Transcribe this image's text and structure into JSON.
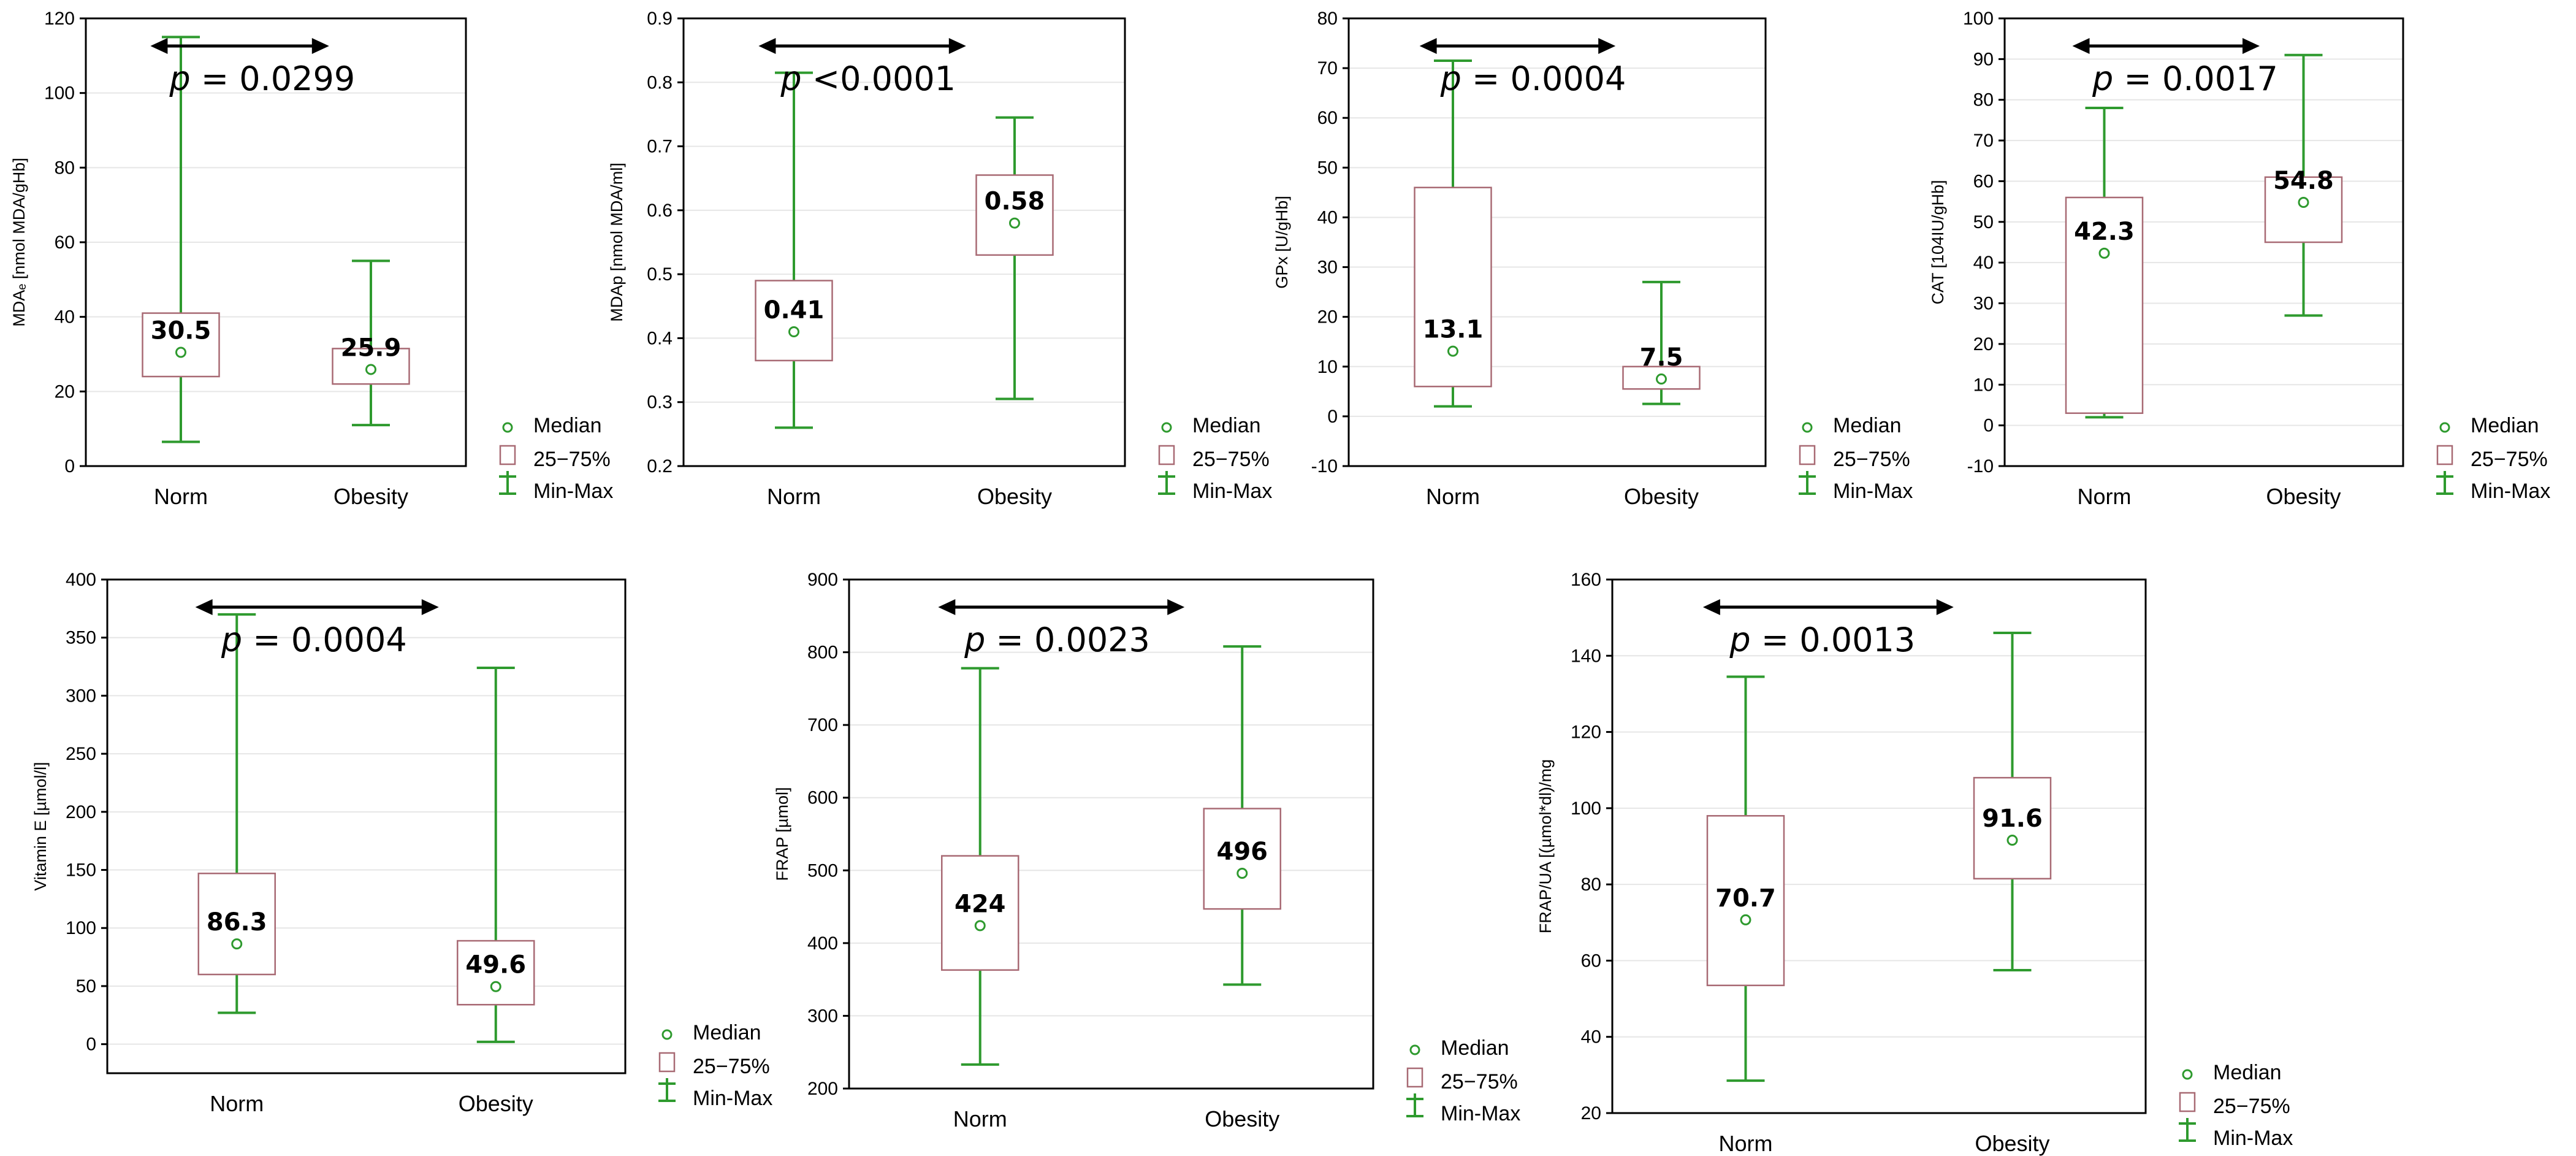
{
  "legend": {
    "median": "Median",
    "iqr": "25−75%",
    "range": "Min-Max"
  },
  "colors": {
    "whisker": "#2e9a2e",
    "box": "#a86a74",
    "median": "#2e9a2e"
  },
  "chart_data": [
    {
      "type": "box",
      "ylabel": "MDAₑ [nmol MDA/gHb]",
      "ylim": [
        0,
        120
      ],
      "yticks": [
        0,
        20,
        40,
        60,
        80,
        100,
        120
      ],
      "grid": true,
      "categories": [
        "Norm",
        "Obesity"
      ],
      "series": [
        {
          "category": "Norm",
          "median": 30.5,
          "q1": 24,
          "q3": 41,
          "min": 6.5,
          "max": 115,
          "label": "30.5"
        },
        {
          "category": "Obesity",
          "median": 25.9,
          "q1": 22,
          "q3": 31.5,
          "min": 11,
          "max": 55,
          "label": "25.9"
        }
      ],
      "p_value": "= 0.0299"
    },
    {
      "type": "box",
      "ylabel": "MDAp [nmol MDA/ml]",
      "ylim": [
        0.2,
        0.9
      ],
      "yticks": [
        0.2,
        0.3,
        0.4,
        0.5,
        0.6,
        0.7,
        0.8,
        0.9
      ],
      "grid": true,
      "categories": [
        "Norm",
        "Obesity"
      ],
      "series": [
        {
          "category": "Norm",
          "median": 0.41,
          "q1": 0.365,
          "q3": 0.49,
          "min": 0.26,
          "max": 0.815,
          "label": "0.41"
        },
        {
          "category": "Obesity",
          "median": 0.58,
          "q1": 0.53,
          "q3": 0.655,
          "min": 0.305,
          "max": 0.745,
          "label": "0.58"
        }
      ],
      "p_value": "<0.0001"
    },
    {
      "type": "box",
      "ylabel": "GPx [U/gHb]",
      "ylim": [
        -10,
        80
      ],
      "yticks": [
        -10,
        0,
        10,
        20,
        30,
        40,
        50,
        60,
        70,
        80
      ],
      "grid": true,
      "categories": [
        "Norm",
        "Obesity"
      ],
      "series": [
        {
          "category": "Norm",
          "median": 13.1,
          "q1": 6,
          "q3": 46,
          "min": 2,
          "max": 71.5,
          "label": "13.1"
        },
        {
          "category": "Obesity",
          "median": 7.5,
          "q1": 5.5,
          "q3": 10,
          "min": 2.5,
          "max": 27,
          "label": "7.5"
        }
      ],
      "p_value": "= 0.0004"
    },
    {
      "type": "box",
      "ylabel": "CAT [104IU/gHb]",
      "ylim": [
        -10,
        100
      ],
      "yticks": [
        -10,
        0,
        10,
        20,
        30,
        40,
        50,
        60,
        70,
        80,
        90,
        100
      ],
      "grid": true,
      "categories": [
        "Norm",
        "Obesity"
      ],
      "series": [
        {
          "category": "Norm",
          "median": 42.3,
          "q1": 3,
          "q3": 56,
          "min": 2,
          "max": 78,
          "label": "42.3"
        },
        {
          "category": "Obesity",
          "median": 54.8,
          "q1": 45,
          "q3": 61,
          "min": 27,
          "max": 91,
          "label": "54.8"
        }
      ],
      "p_value": "= 0.0017"
    },
    {
      "type": "box",
      "ylabel": "Vitamin E [µmol/l]",
      "ylim": [
        -25,
        400
      ],
      "yticks": [
        0,
        50,
        100,
        150,
        200,
        250,
        300,
        350,
        400
      ],
      "grid": true,
      "categories": [
        "Norm",
        "Obesity"
      ],
      "series": [
        {
          "category": "Norm",
          "median": 86.3,
          "q1": 60,
          "q3": 147,
          "min": 27,
          "max": 370,
          "label": "86.3"
        },
        {
          "category": "Obesity",
          "median": 49.6,
          "q1": 34,
          "q3": 89,
          "min": 2,
          "max": 324,
          "label": "49.6"
        }
      ],
      "p_value": "= 0.0004"
    },
    {
      "type": "box",
      "ylabel": "FRAP [µmol]",
      "ylim": [
        200,
        900
      ],
      "yticks": [
        200,
        300,
        400,
        500,
        600,
        700,
        800,
        900
      ],
      "grid": true,
      "categories": [
        "Norm",
        "Obesity"
      ],
      "series": [
        {
          "category": "Norm",
          "median": 424,
          "q1": 363,
          "q3": 520,
          "min": 233,
          "max": 778,
          "label": "424"
        },
        {
          "category": "Obesity",
          "median": 496,
          "q1": 447,
          "q3": 585,
          "min": 343,
          "max": 808,
          "label": "496"
        }
      ],
      "p_value": "= 0.0023"
    },
    {
      "type": "box",
      "ylabel": "FRAP/UA [(µmol*dl)/mg",
      "ylim": [
        20,
        160
      ],
      "yticks": [
        20,
        40,
        60,
        80,
        100,
        120,
        140,
        160
      ],
      "grid": true,
      "categories": [
        "Norm",
        "Obesity"
      ],
      "series": [
        {
          "category": "Norm",
          "median": 70.7,
          "q1": 53.5,
          "q3": 98,
          "min": 28.5,
          "max": 134.5,
          "label": "70.7"
        },
        {
          "category": "Obesity",
          "median": 91.6,
          "q1": 81.5,
          "q3": 108,
          "min": 57.5,
          "max": 146,
          "label": "91.6"
        }
      ],
      "p_value": "= 0.0013"
    }
  ]
}
